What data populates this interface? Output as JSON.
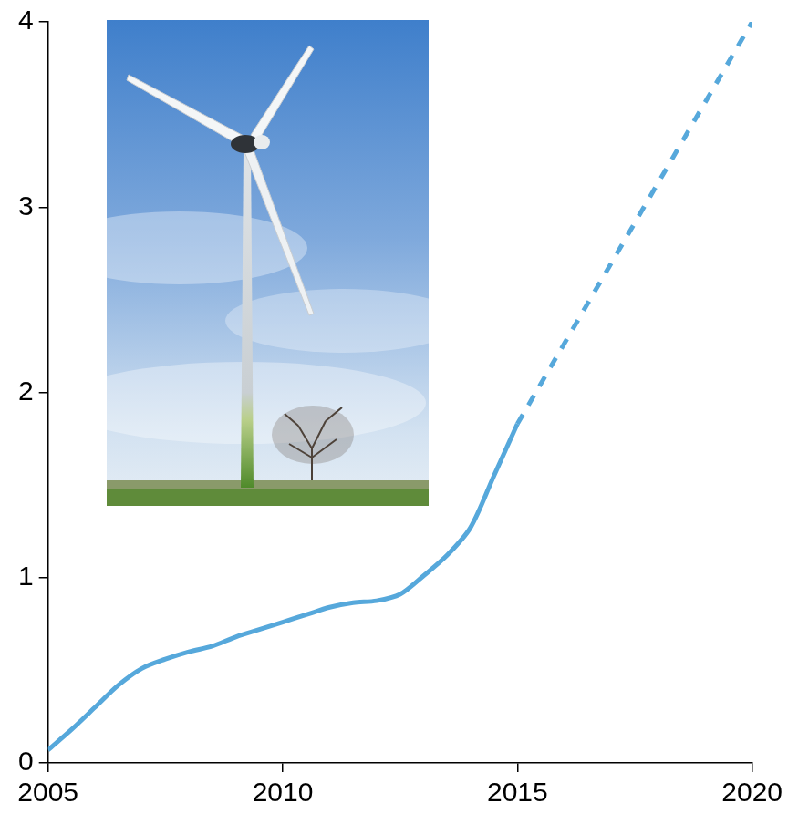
{
  "chart_data": {
    "type": "line",
    "x": [
      2005,
      2005.5,
      2006,
      2006.5,
      2007,
      2007.5,
      2008,
      2008.5,
      2009,
      2009.5,
      2010,
      2010.5,
      2011,
      2011.5,
      2012,
      2012.5,
      2013,
      2013.5,
      2014,
      2014.5,
      2015,
      2020
    ],
    "series": [
      {
        "color": "#56a8db",
        "line_style": "solid",
        "values": [
          0.07,
          0.18,
          0.3,
          0.42,
          0.51,
          0.56,
          0.6,
          0.63,
          0.68,
          0.72,
          0.76,
          0.8,
          0.84,
          0.865,
          0.875,
          0.91,
          1.01,
          1.12,
          1.27,
          1.55,
          1.83,
          null
        ]
      },
      {
        "color": "#56a8db",
        "line_style": "dashed",
        "values": [
          null,
          null,
          null,
          null,
          null,
          null,
          null,
          null,
          null,
          null,
          null,
          null,
          null,
          null,
          null,
          null,
          null,
          null,
          null,
          null,
          1.83,
          4.0
        ]
      }
    ],
    "xlim": [
      2005,
      2020
    ],
    "xticks": [
      2005,
      2010,
      2015,
      2020
    ],
    "ylim": [
      0,
      4
    ],
    "yticks": [
      0,
      1,
      2,
      3,
      4
    ],
    "grid": false
  }
}
